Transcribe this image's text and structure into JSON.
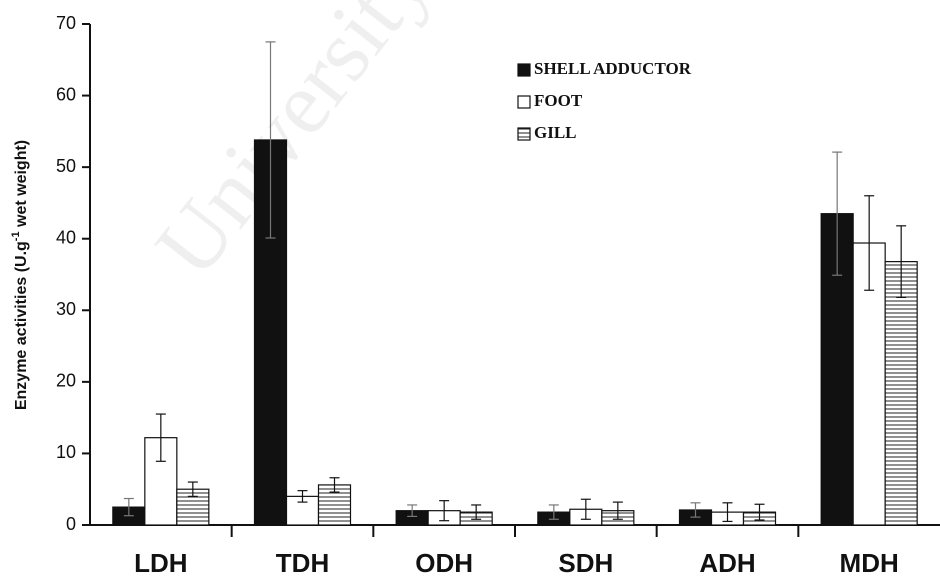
{
  "chart_data": {
    "type": "bar",
    "watermark": "University",
    "y_label": [
      "Enzyme activities (U.g",
      "-1",
      " wet weight)"
    ],
    "categories": [
      "LDH",
      "TDH",
      "ODH",
      "SDH",
      "ADH",
      "MDH"
    ],
    "series": [
      {
        "name": "SHELL ADDUCTOR",
        "color": "#111111",
        "values": [
          2.5,
          53.8,
          2.0,
          1.8,
          2.1,
          43.5
        ],
        "errors": [
          1.2,
          13.7,
          0.8,
          1.0,
          1.0,
          8.6
        ]
      },
      {
        "name": "FOOT",
        "color": "#ffffff",
        "values": [
          12.2,
          4.0,
          2.0,
          2.2,
          1.8,
          39.4
        ],
        "errors": [
          3.3,
          0.8,
          1.4,
          1.4,
          1.3,
          6.6
        ]
      },
      {
        "name": "GILL",
        "color": "#ffffff",
        "hatch": "horizontal",
        "values": [
          5.0,
          5.6,
          1.8,
          2.0,
          1.8,
          36.8
        ],
        "errors": [
          1.0,
          1.0,
          1.0,
          1.2,
          1.1,
          5.0
        ]
      }
    ],
    "ylim": [
      0,
      70
    ],
    "yticks": [
      0,
      10,
      20,
      30,
      40,
      50,
      60,
      70
    ],
    "grid": false,
    "legend": "top-right"
  }
}
